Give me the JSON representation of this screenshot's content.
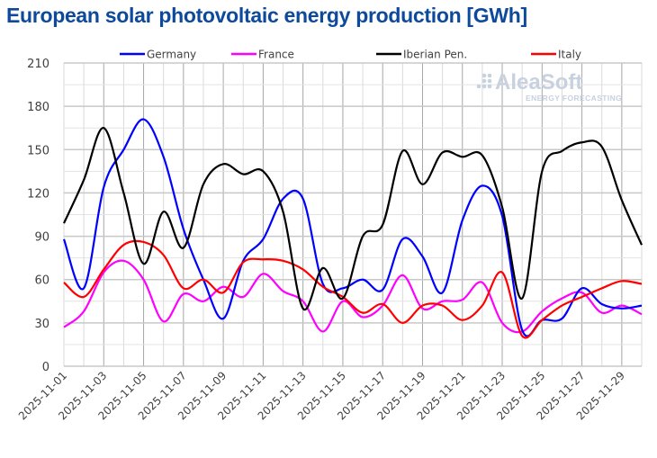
{
  "chart_data": {
    "type": "line",
    "title": "European solar photovoltaic energy production [GWh]",
    "xlabel": "",
    "ylabel": "",
    "ylim": [
      0,
      210
    ],
    "yticks": [
      0,
      30,
      60,
      90,
      120,
      150,
      180,
      210
    ],
    "grid": true,
    "legend_position": "top",
    "watermark": {
      "brand": "AleaSoft",
      "tagline": "ENERGY FORECASTING"
    },
    "x": [
      "2025-11-01",
      "2025-11-02",
      "2025-11-03",
      "2025-11-04",
      "2025-11-05",
      "2025-11-06",
      "2025-11-07",
      "2025-11-08",
      "2025-11-09",
      "2025-11-10",
      "2025-11-11",
      "2025-11-12",
      "2025-11-13",
      "2025-11-14",
      "2025-11-15",
      "2025-11-16",
      "2025-11-17",
      "2025-11-18",
      "2025-11-19",
      "2025-11-20",
      "2025-11-21",
      "2025-11-22",
      "2025-11-23",
      "2025-11-24",
      "2025-11-25",
      "2025-11-26",
      "2025-11-27",
      "2025-11-28",
      "2025-11-29",
      "2025-11-30"
    ],
    "xtick_labels": [
      "2025-11-01",
      "2025-11-03",
      "2025-11-05",
      "2025-11-07",
      "2025-11-09",
      "2025-11-11",
      "2025-11-13",
      "2025-11-15",
      "2025-11-17",
      "2025-11-19",
      "2025-11-21",
      "2025-11-23",
      "2025-11-25",
      "2025-11-27",
      "2025-11-29"
    ],
    "series": [
      {
        "name": "Germany",
        "color": "#0000ff",
        "values": [
          88,
          54,
          124,
          150,
          171,
          145,
          95,
          60,
          33,
          73,
          88,
          116,
          116,
          57,
          54,
          60,
          53,
          88,
          76,
          51,
          101,
          125,
          104,
          25,
          32,
          33,
          54,
          43,
          40,
          42
        ]
      },
      {
        "name": "France",
        "color": "#ff00ff",
        "values": [
          27,
          38,
          65,
          73,
          60,
          31,
          50,
          45,
          55,
          48,
          64,
          52,
          45,
          24,
          45,
          34,
          42,
          63,
          40,
          45,
          46,
          58,
          30,
          24,
          38,
          47,
          51,
          37,
          42,
          36
        ]
      },
      {
        "name": "Iberian Pen.",
        "color": "#000000",
        "values": [
          99,
          129,
          165,
          120,
          71,
          107,
          82,
          126,
          140,
          133,
          135,
          107,
          40,
          68,
          47,
          90,
          98,
          149,
          126,
          148,
          145,
          146,
          110,
          47,
          135,
          149,
          155,
          152,
          115,
          84
        ]
      },
      {
        "name": "Italy",
        "color": "#ff0000",
        "values": [
          58,
          48,
          67,
          84,
          86,
          77,
          54,
          60,
          51,
          72,
          74,
          73,
          67,
          55,
          48,
          37,
          43,
          30,
          42,
          42,
          32,
          42,
          65,
          21,
          32,
          42,
          48,
          54,
          59,
          57
        ]
      }
    ]
  }
}
